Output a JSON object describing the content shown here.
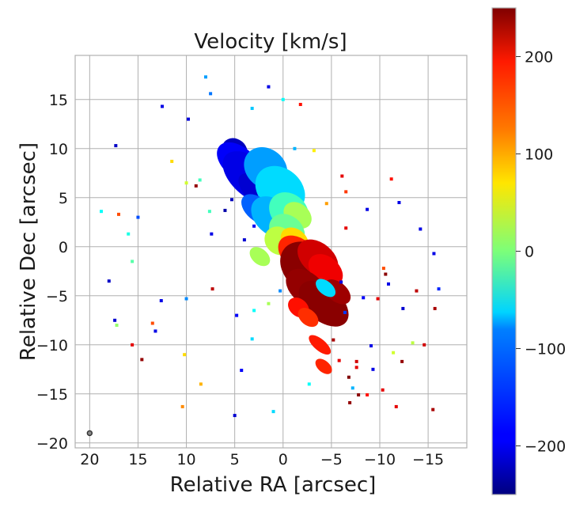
{
  "chart_data": {
    "type": "heatmap",
    "title": "Velocity [km/s]",
    "xlabel": "Relative RA [arcsec]",
    "ylabel": "Relative Dec [arcsec]",
    "xlim": [
      21.5,
      -19
    ],
    "ylim": [
      -20.5,
      19.5
    ],
    "xticks": [
      20,
      15,
      10,
      5,
      0,
      -5,
      -10,
      -15
    ],
    "xtick_labels": [
      "20",
      "15",
      "10",
      "5",
      "0",
      "−5",
      "−10",
      "−15"
    ],
    "yticks": [
      15,
      10,
      5,
      0,
      -5,
      -10,
      -15,
      -20
    ],
    "ytick_labels": [
      "15",
      "10",
      "5",
      "0",
      "−5",
      "−10",
      "−15",
      "−20"
    ],
    "grid": true,
    "colorbar": {
      "label_positions": [
        200,
        100,
        0,
        -100,
        -200
      ],
      "labels": [
        "200",
        "100",
        "0",
        "−100",
        "−200"
      ],
      "range": [
        -250,
        250
      ],
      "colormap": "jet",
      "location": "right"
    },
    "beam": {
      "ra": 20,
      "dec": -19
    },
    "blobs": [
      {
        "ra": 5.0,
        "dec": 9.8,
        "len": 1.4,
        "wid": 1.2,
        "angle": 40,
        "v": -220
      },
      {
        "ra": 4.6,
        "dec": 8.6,
        "len": 2.6,
        "wid": 1.6,
        "angle": 40,
        "v": -190
      },
      {
        "ra": 3.2,
        "dec": 7.0,
        "len": 3.6,
        "wid": 2.0,
        "angle": 40,
        "v": -200
      },
      {
        "ra": 2.0,
        "dec": 5.2,
        "len": 3.2,
        "wid": 1.4,
        "angle": 40,
        "v": -210
      },
      {
        "ra": 1.8,
        "dec": 8.0,
        "len": 2.4,
        "wid": 2.0,
        "angle": 40,
        "v": -110
      },
      {
        "ra": 0.3,
        "dec": 5.8,
        "len": 2.8,
        "wid": 2.2,
        "angle": 40,
        "v": -80
      },
      {
        "ra": 2.6,
        "dec": 3.8,
        "len": 2.0,
        "wid": 1.2,
        "angle": 40,
        "v": -140
      },
      {
        "ra": 1.0,
        "dec": 3.0,
        "len": 2.6,
        "wid": 1.8,
        "angle": 40,
        "v": -100
      },
      {
        "ra": -0.6,
        "dec": 3.6,
        "len": 2.2,
        "wid": 1.8,
        "angle": 40,
        "v": -30
      },
      {
        "ra": -1.5,
        "dec": 3.2,
        "len": 1.6,
        "wid": 1.2,
        "angle": 40,
        "v": 20
      },
      {
        "ra": -0.4,
        "dec": 1.6,
        "len": 2.0,
        "wid": 1.6,
        "angle": 40,
        "v": -10
      },
      {
        "ra": 0.4,
        "dec": 0.6,
        "len": 1.6,
        "wid": 1.4,
        "angle": 40,
        "v": 30
      },
      {
        "ra": -1.2,
        "dec": 0.6,
        "len": 1.6,
        "wid": 1.2,
        "angle": 40,
        "v": 80
      },
      {
        "ra": -1.6,
        "dec": -0.8,
        "len": 2.4,
        "wid": 1.6,
        "angle": 40,
        "v": 170
      },
      {
        "ra": -2.6,
        "dec": -2.2,
        "len": 3.2,
        "wid": 2.4,
        "angle": 40,
        "v": 245
      },
      {
        "ra": -3.6,
        "dec": -1.2,
        "len": 2.4,
        "wid": 1.6,
        "angle": 40,
        "v": 210
      },
      {
        "ra": -4.4,
        "dec": -2.4,
        "len": 2.0,
        "wid": 1.4,
        "angle": 40,
        "v": 195
      },
      {
        "ra": -2.4,
        "dec": -4.2,
        "len": 2.4,
        "wid": 1.6,
        "angle": 40,
        "v": 240
      },
      {
        "ra": -4.2,
        "dec": -5.8,
        "len": 3.0,
        "wid": 1.8,
        "angle": 40,
        "v": 245
      },
      {
        "ra": -5.6,
        "dec": -4.6,
        "len": 1.6,
        "wid": 1.0,
        "angle": 40,
        "v": 235
      },
      {
        "ra": -1.6,
        "dec": -6.2,
        "len": 1.2,
        "wid": 0.9,
        "angle": 40,
        "v": 180
      },
      {
        "ra": -2.6,
        "dec": -7.2,
        "len": 1.2,
        "wid": 0.8,
        "angle": 40,
        "v": 165
      },
      {
        "ra": -3.8,
        "dec": -10.0,
        "len": 1.4,
        "wid": 0.6,
        "angle": 40,
        "v": 175
      },
      {
        "ra": -4.2,
        "dec": -12.2,
        "len": 1.0,
        "wid": 0.6,
        "angle": 40,
        "v": 170
      },
      {
        "ra": -4.4,
        "dec": -4.2,
        "len": 1.2,
        "wid": 0.7,
        "angle": 40,
        "v": -80
      },
      {
        "ra": 2.4,
        "dec": -1.0,
        "len": 1.2,
        "wid": 0.8,
        "angle": 40,
        "v": 20
      }
    ],
    "specks": [
      {
        "ra": 17.3,
        "dec": 10.3,
        "v": -215
      },
      {
        "ra": 18.8,
        "dec": 3.6,
        "v": -60
      },
      {
        "ra": 17.0,
        "dec": 3.3,
        "v": 150
      },
      {
        "ra": 15.0,
        "dec": 3.0,
        "v": -150
      },
      {
        "ra": 15.6,
        "dec": -1.5,
        "v": -20
      },
      {
        "ra": 18.0,
        "dec": -3.5,
        "v": -215
      },
      {
        "ra": 17.4,
        "dec": -7.5,
        "v": -210
      },
      {
        "ra": 17.2,
        "dec": -8.0,
        "v": 10
      },
      {
        "ra": 15.6,
        "dec": -10.0,
        "v": 200
      },
      {
        "ra": 14.6,
        "dec": -11.5,
        "v": 240
      },
      {
        "ra": 12.6,
        "dec": -5.5,
        "v": -200
      },
      {
        "ra": 10.0,
        "dec": -5.3,
        "v": -120
      },
      {
        "ra": 12.5,
        "dec": 14.3,
        "v": -200
      },
      {
        "ra": 9.8,
        "dec": 13.0,
        "v": -205
      },
      {
        "ra": 11.5,
        "dec": 8.7,
        "v": 80
      },
      {
        "ra": 8.6,
        "dec": 6.8,
        "v": -30
      },
      {
        "ra": 7.6,
        "dec": 3.6,
        "v": -30
      },
      {
        "ra": 7.4,
        "dec": 1.3,
        "v": -200
      },
      {
        "ra": 6.0,
        "dec": 3.7,
        "v": -230
      },
      {
        "ra": 5.3,
        "dec": 4.8,
        "v": -220
      },
      {
        "ra": 4.0,
        "dec": 0.7,
        "v": -210
      },
      {
        "ra": 3.0,
        "dec": 2.1,
        "v": -195
      },
      {
        "ra": 1.5,
        "dec": -5.8,
        "v": 20
      },
      {
        "ra": 3.0,
        "dec": -6.5,
        "v": -60
      },
      {
        "ra": 0.3,
        "dec": -4.5,
        "v": -120
      },
      {
        "ra": 3.2,
        "dec": -9.4,
        "v": -80
      },
      {
        "ra": 0.0,
        "dec": 15.0,
        "v": -60
      },
      {
        "ra": 3.2,
        "dec": 14.1,
        "v": -90
      },
      {
        "ra": 8.0,
        "dec": 17.3,
        "v": -110
      },
      {
        "ra": 7.5,
        "dec": 15.6,
        "v": -130
      },
      {
        "ra": 1.5,
        "dec": 16.3,
        "v": -200
      },
      {
        "ra": -1.8,
        "dec": 14.5,
        "v": 180
      },
      {
        "ra": -6.5,
        "dec": 1.9,
        "v": 200
      },
      {
        "ra": -6.0,
        "dec": -3.6,
        "v": -200
      },
      {
        "ra": -6.4,
        "dec": -6.7,
        "v": -160
      },
      {
        "ra": -8.3,
        "dec": -5.2,
        "v": -190
      },
      {
        "ra": -9.8,
        "dec": -5.3,
        "v": 200
      },
      {
        "ra": -10.6,
        "dec": -2.8,
        "v": 245
      },
      {
        "ra": -10.9,
        "dec": -3.8,
        "v": -200
      },
      {
        "ra": -12.4,
        "dec": -6.3,
        "v": -210
      },
      {
        "ra": -13.8,
        "dec": -4.5,
        "v": 220
      },
      {
        "ra": -15.6,
        "dec": -0.7,
        "v": -200
      },
      {
        "ra": -16.1,
        "dec": -4.3,
        "v": -170
      },
      {
        "ra": -15.7,
        "dec": -6.3,
        "v": 230
      },
      {
        "ra": -13.4,
        "dec": -9.8,
        "v": 30
      },
      {
        "ra": -14.6,
        "dec": -10.0,
        "v": 210
      },
      {
        "ra": -12.3,
        "dec": -11.7,
        "v": 240
      },
      {
        "ra": -11.4,
        "dec": -10.8,
        "v": 40
      },
      {
        "ra": -9.1,
        "dec": -10.1,
        "v": -200
      },
      {
        "ra": -7.6,
        "dec": -11.7,
        "v": 210
      },
      {
        "ra": -7.6,
        "dec": -12.3,
        "v": 200
      },
      {
        "ra": -6.8,
        "dec": -13.3,
        "v": 250
      },
      {
        "ra": -7.2,
        "dec": -14.4,
        "v": -100
      },
      {
        "ra": -7.8,
        "dec": -15.1,
        "v": 245
      },
      {
        "ra": -8.7,
        "dec": -15.1,
        "v": 180
      },
      {
        "ra": -10.3,
        "dec": -14.6,
        "v": 200
      },
      {
        "ra": -6.9,
        "dec": -15.9,
        "v": 240
      },
      {
        "ra": -9.3,
        "dec": -12.5,
        "v": -200
      },
      {
        "ra": -10.4,
        "dec": -2.2,
        "v": 150
      },
      {
        "ra": -8.7,
        "dec": 3.8,
        "v": -200
      },
      {
        "ra": -11.2,
        "dec": 6.9,
        "v": 180
      },
      {
        "ra": -6.1,
        "dec": 7.2,
        "v": 200
      },
      {
        "ra": -6.5,
        "dec": 5.6,
        "v": 160
      },
      {
        "ra": -4.5,
        "dec": 4.4,
        "v": 110
      },
      {
        "ra": -5.2,
        "dec": -9.5,
        "v": 230
      },
      {
        "ra": -5.8,
        "dec": -11.6,
        "v": 200
      },
      {
        "ra": -1.2,
        "dec": 10.0,
        "v": -100
      },
      {
        "ra": -3.2,
        "dec": 9.8,
        "v": 70
      },
      {
        "ra": 10.0,
        "dec": 6.5,
        "v": 40
      },
      {
        "ra": 9.0,
        "dec": 6.2,
        "v": 240
      },
      {
        "ra": 10.2,
        "dec": -11.0,
        "v": 80
      },
      {
        "ra": 8.5,
        "dec": -14.0,
        "v": 100
      },
      {
        "ra": 10.4,
        "dec": -16.3,
        "v": 120
      },
      {
        "ra": 5.0,
        "dec": -17.2,
        "v": -210
      },
      {
        "ra": 1.0,
        "dec": -16.8,
        "v": -80
      },
      {
        "ra": -2.7,
        "dec": -14.0,
        "v": -60
      },
      {
        "ra": -11.7,
        "dec": -16.3,
        "v": 200
      },
      {
        "ra": -15.5,
        "dec": -16.6,
        "v": 230
      },
      {
        "ra": -12.0,
        "dec": 4.5,
        "v": -200
      },
      {
        "ra": -14.2,
        "dec": 1.8,
        "v": -200
      },
      {
        "ra": 16.0,
        "dec": 1.3,
        "v": -50
      },
      {
        "ra": 4.3,
        "dec": -12.6,
        "v": -190
      },
      {
        "ra": 13.2,
        "dec": -8.6,
        "v": -200
      },
      {
        "ra": 13.5,
        "dec": -7.8,
        "v": 150
      },
      {
        "ra": 7.3,
        "dec": -4.3,
        "v": 220
      },
      {
        "ra": 4.8,
        "dec": -7.0,
        "v": -190
      }
    ]
  }
}
